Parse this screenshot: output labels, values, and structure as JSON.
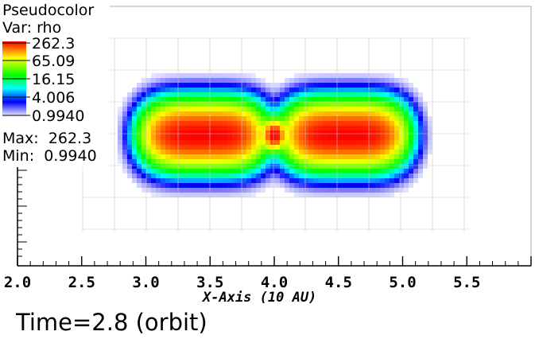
{
  "legend": {
    "plot_name": "Pseudocolor",
    "var_label": "Var: rho",
    "ticks": [
      "262.3",
      "65.09",
      "16.15",
      "4.006",
      "0.9940"
    ],
    "max_label": "Max:",
    "max_value": "262.3",
    "min_label": "Min:",
    "min_value": "0.9940"
  },
  "time_label": "Time=2.8 (orbit)",
  "chart_data": {
    "type": "heatmap",
    "title": "",
    "variable": "rho",
    "xlabel": "X-Axis (10 AU)",
    "xticks": [
      "2.0",
      "2.5",
      "3.0",
      "3.5",
      "4.0",
      "4.5",
      "5.0",
      "5.5"
    ],
    "xlim": [
      2.0,
      6.0
    ],
    "value_range": [
      0.994,
      262.3
    ],
    "scale": "log",
    "colormap": [
      "#ffffff",
      "#0000ff",
      "#00ffff",
      "#00ff00",
      "#ffff00",
      "#ff0000"
    ],
    "features": [
      {
        "name": "left lobe",
        "x_center": 3.45,
        "peak": 262.3
      },
      {
        "name": "central core",
        "x_center": 4.0,
        "peak": 262.3
      },
      {
        "name": "right lobe",
        "x_center": 4.55,
        "peak": 262.3
      }
    ],
    "grid": true
  }
}
